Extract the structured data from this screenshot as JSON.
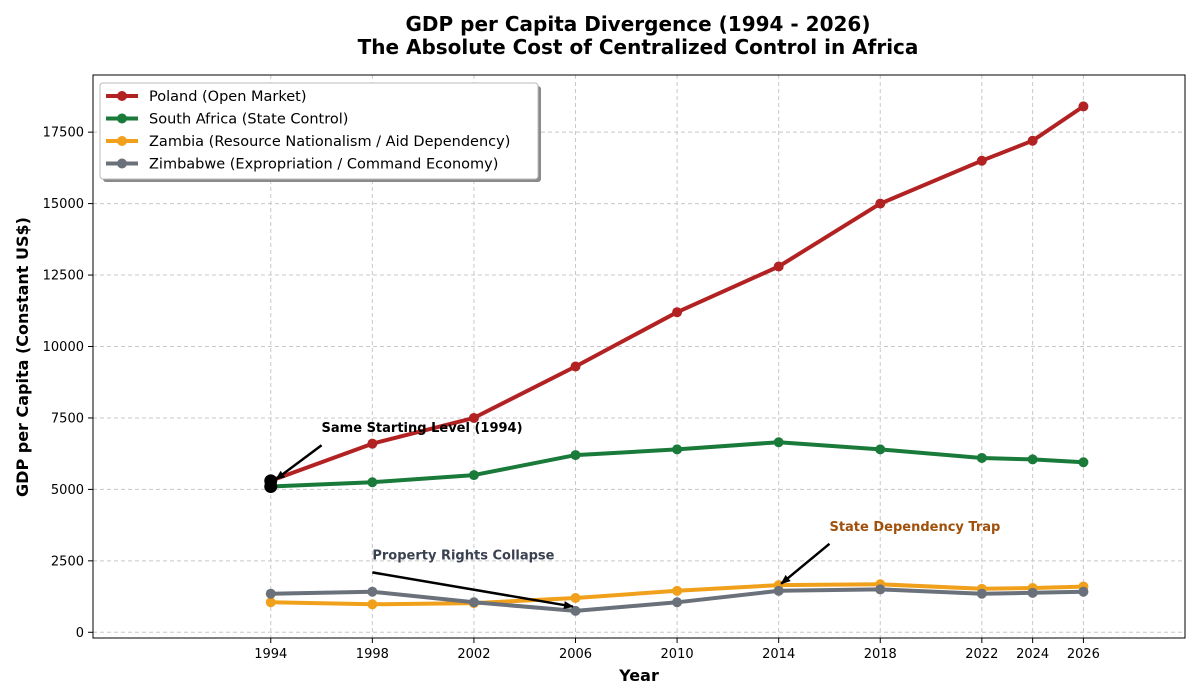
{
  "chart_data": {
    "type": "line",
    "title": "GDP per Capita Divergence (1994 - 2026)",
    "subtitle": "The Absolute Cost of Centralized Control in Africa",
    "xlabel": "Year",
    "ylabel": "GDP per Capita (Constant US$)",
    "xlim": [
      1987,
      2030
    ],
    "ylim": [
      -200,
      19500
    ],
    "x": [
      1994,
      1998,
      2002,
      2006,
      2010,
      2014,
      2018,
      2022,
      2024,
      2026
    ],
    "xticks": [
      "1994",
      "1998",
      "2002",
      "2006",
      "2010",
      "2014",
      "2018",
      "2022",
      "2024",
      "2026"
    ],
    "yticks": [
      0,
      2500,
      5000,
      7500,
      10000,
      12500,
      15000,
      17500
    ],
    "ytick_labels": [
      "0",
      "2500",
      "5000",
      "7500",
      "10000",
      "12500",
      "15000",
      "17500"
    ],
    "grid": true,
    "legend_position": "top-left",
    "series": [
      {
        "name": "Poland (Open Market)",
        "color": "#b22222",
        "values": [
          5300,
          6600,
          7500,
          9300,
          11200,
          12800,
          15000,
          16500,
          17200,
          18400
        ]
      },
      {
        "name": "South Africa (State Control)",
        "color": "#1a7a3a",
        "values": [
          5100,
          5250,
          5500,
          6200,
          6400,
          6650,
          6400,
          6100,
          6050,
          5950
        ]
      },
      {
        "name": "Zambia (Resource Nationalism / Aid Dependency)",
        "color": "#f0a01a",
        "values": [
          1050,
          980,
          1020,
          1200,
          1450,
          1650,
          1680,
          1520,
          1550,
          1600
        ]
      },
      {
        "name": "Zimbabwe (Expropriation / Command Economy)",
        "color": "#6b717a",
        "values": [
          1350,
          1420,
          1050,
          750,
          1050,
          1450,
          1500,
          1350,
          1380,
          1420
        ]
      }
    ],
    "start_markers": [
      {
        "x": 1994,
        "y": 5300
      },
      {
        "x": 1994,
        "y": 5100
      }
    ],
    "annotations": [
      {
        "text": "Same Starting Level (1994)",
        "color": "#000000",
        "text_x": 1996,
        "text_y": 7000,
        "arrow_to_x": 1994.2,
        "arrow_to_y": 5350
      },
      {
        "text": "Property Rights Collapse",
        "color": "#3a4150",
        "text_x": 1998,
        "text_y": 2550,
        "arrow_to_x": 2005.9,
        "arrow_to_y": 900
      },
      {
        "text": "State Dependency Trap",
        "color": "#a0500a",
        "text_x": 2016,
        "text_y": 3550,
        "arrow_to_x": 2014.1,
        "arrow_to_y": 1700
      }
    ]
  }
}
